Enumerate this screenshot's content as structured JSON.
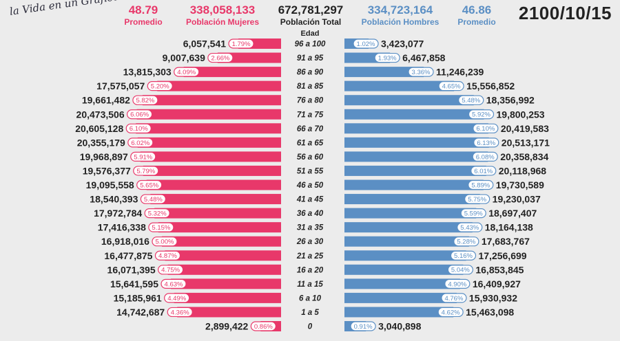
{
  "logo_text": "la Vida en un Gráfico",
  "header": {
    "promedio_mujeres": "48.79",
    "promedio_mujeres_label": "Promedio",
    "poblacion_mujeres": "338,058,133",
    "poblacion_mujeres_label": "Población Mujeres",
    "poblacion_total": "672,781,297",
    "poblacion_total_label": "Población Total",
    "poblacion_hombres": "334,723,164",
    "poblacion_hombres_label": "Población Hombres",
    "promedio_hombres": "46.86",
    "promedio_hombres_label": "Promedio",
    "date": "2100/10/15"
  },
  "colors": {
    "female": "#e8386a",
    "male": "#5b8fc4",
    "text_dark": "#222222",
    "background": "#ececec"
  },
  "chart_data": {
    "type": "bar",
    "orientation": "horizontal-population-pyramid",
    "category_header": "Edad",
    "categories": [
      "96 a 100",
      "91 a 95",
      "86 a 90",
      "81 a 85",
      "76 a 80",
      "71 a 75",
      "66 a 70",
      "61 a 65",
      "56 a 60",
      "51 a 55",
      "46 a 50",
      "41 a 45",
      "36 a 40",
      "31 a 35",
      "26 a 30",
      "21 a 25",
      "16 a 20",
      "11 a 15",
      "6 a 10",
      "1 a 5",
      "0"
    ],
    "series": [
      {
        "name": "Población Mujeres",
        "values": [
          6057541,
          9007639,
          13815303,
          17575057,
          19661482,
          20473506,
          20605128,
          20355179,
          19968897,
          19576377,
          19095558,
          18540393,
          17972784,
          17416338,
          16918016,
          16477875,
          16071395,
          15641595,
          15185961,
          14742687,
          2899422
        ],
        "labels": [
          "6,057,541",
          "9,007,639",
          "13,815,303",
          "17,575,057",
          "19,661,482",
          "20,473,506",
          "20,605,128",
          "20,355,179",
          "19,968,897",
          "19,576,377",
          "19,095,558",
          "18,540,393",
          "17,972,784",
          "17,416,338",
          "16,918,016",
          "16,477,875",
          "16,071,395",
          "15,641,595",
          "15,185,961",
          "14,742,687",
          "2,899,422"
        ],
        "percents": [
          "1.79%",
          "2.66%",
          "4.09%",
          "5.20%",
          "5.82%",
          "6.06%",
          "6.10%",
          "6.02%",
          "5.91%",
          "5.79%",
          "5.65%",
          "5.48%",
          "5.32%",
          "5.15%",
          "5.00%",
          "4.87%",
          "4.75%",
          "4.63%",
          "4.49%",
          "4.36%",
          "0.86%"
        ]
      },
      {
        "name": "Población Hombres",
        "values": [
          3423077,
          6467858,
          11246239,
          15556852,
          18356992,
          19800253,
          20419583,
          20513171,
          20358834,
          20118968,
          19730589,
          19230037,
          18697407,
          18164138,
          17683767,
          17256699,
          16853845,
          16409927,
          15930932,
          15463098,
          3040898
        ],
        "labels": [
          "3,423,077",
          "6,467,858",
          "11,246,239",
          "15,556,852",
          "18,356,992",
          "19,800,253",
          "20,419,583",
          "20,513,171",
          "20,358,834",
          "20,118,968",
          "19,730,589",
          "19,230,037",
          "18,697,407",
          "18,164,138",
          "17,683,767",
          "17,256,699",
          "16,853,845",
          "16,409,927",
          "15,930,932",
          "15,463,098",
          "3,040,898"
        ],
        "percents": [
          "1.02%",
          "1.93%",
          "3.36%",
          "4.65%",
          "5.48%",
          "5.92%",
          "6.10%",
          "6.13%",
          "6.08%",
          "6.01%",
          "5.89%",
          "5.75%",
          "5.59%",
          "5.43%",
          "5.28%",
          "5.16%",
          "5.04%",
          "4.90%",
          "4.76%",
          "4.62%",
          "0.91%"
        ]
      }
    ]
  }
}
